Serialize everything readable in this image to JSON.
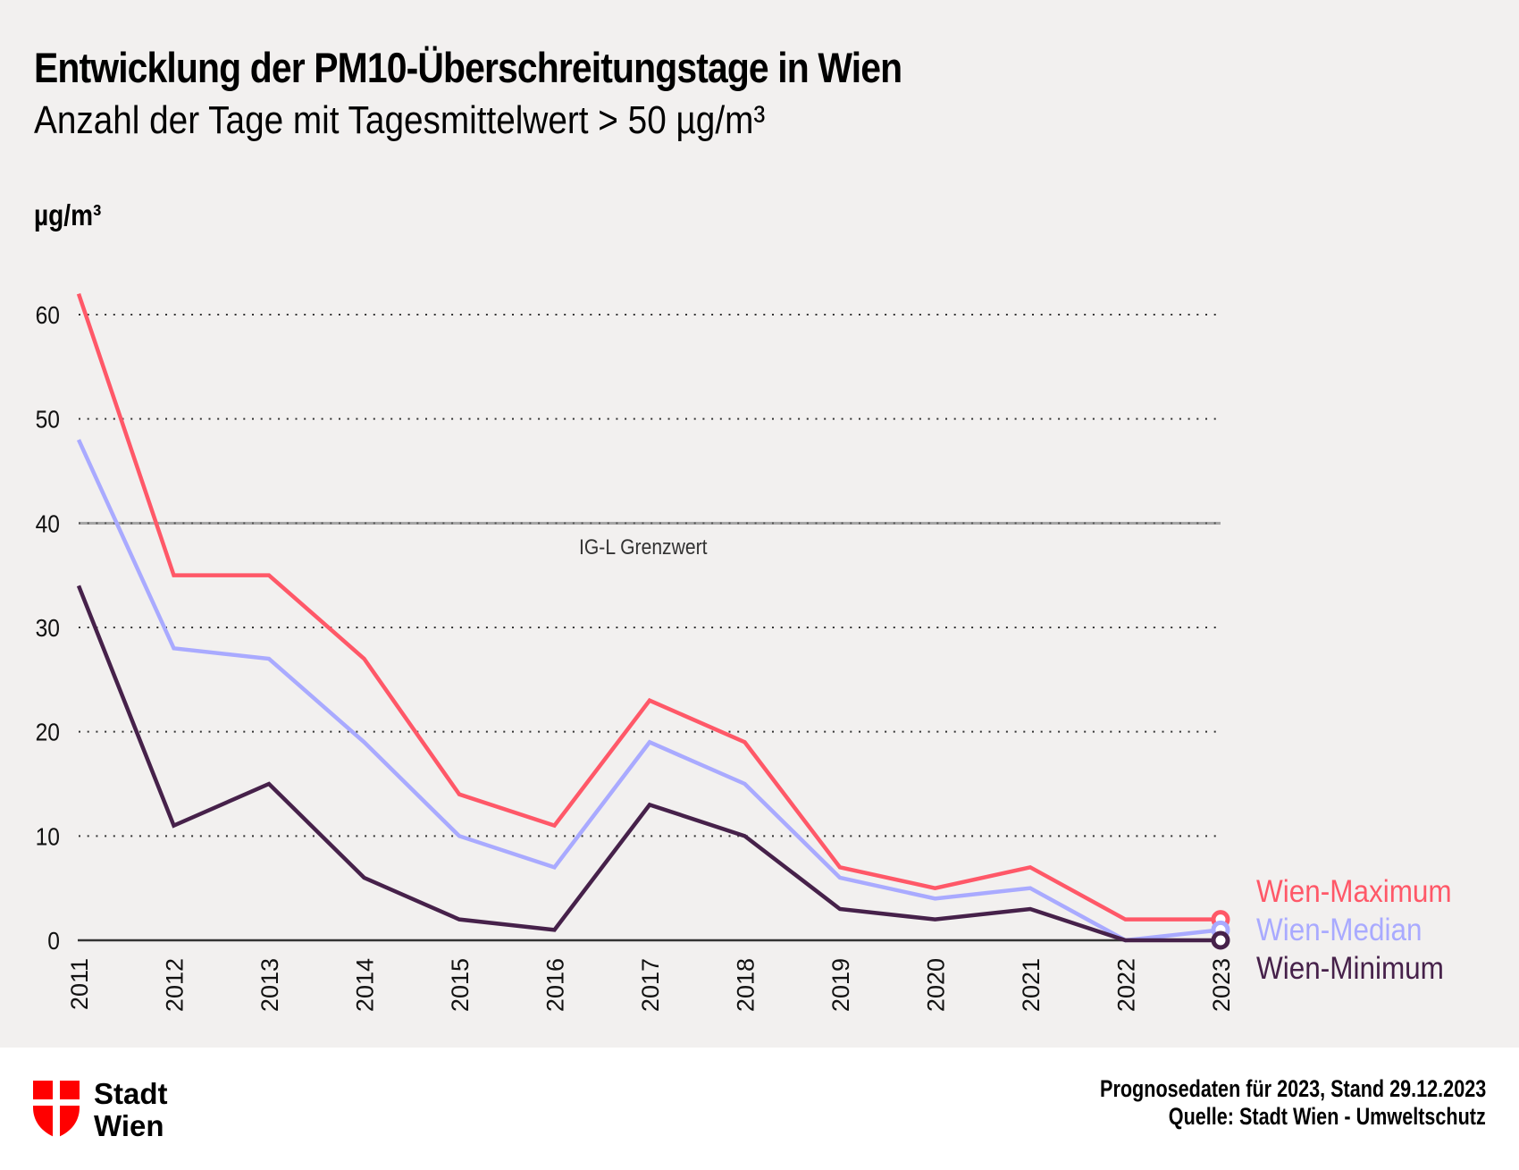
{
  "header": {
    "title": "Entwicklung der PM10-Überschreitungstage in Wien",
    "subtitle": "Anzahl der Tage mit Tagesmittelwert > 50 µg/m³"
  },
  "chart_data": {
    "type": "line",
    "title": "Entwicklung der PM10-Überschreitungstage in Wien",
    "subtitle": "Anzahl der Tage mit Tagesmittelwert > 50 µg/m³",
    "xlabel": "",
    "ylabel": "µg/m³",
    "x": [
      "2011",
      "2012",
      "2013",
      "2014",
      "2015",
      "2016",
      "2017",
      "2018",
      "2019",
      "2020",
      "2021",
      "2022",
      "2023"
    ],
    "ylim": [
      0,
      60
    ],
    "yticks": [
      0,
      10,
      20,
      30,
      40,
      50,
      60
    ],
    "grid": true,
    "series": [
      {
        "name": "Wien-Maximum",
        "color": "#ff5868",
        "values": [
          62,
          35,
          35,
          27,
          14,
          11,
          23,
          19,
          7,
          5,
          7,
          2,
          2
        ]
      },
      {
        "name": "Wien-Median",
        "color": "#a9aaff",
        "values": [
          48,
          28,
          27,
          19,
          10,
          7,
          19,
          15,
          6,
          4,
          5,
          0,
          1
        ]
      },
      {
        "name": "Wien-Minimum",
        "color": "#46214a",
        "values": [
          34,
          11,
          15,
          6,
          2,
          1,
          13,
          10,
          3,
          2,
          3,
          0,
          0
        ]
      }
    ],
    "reference_line": {
      "label": "IG-L Grenzwert",
      "value": 40
    },
    "legend_position": "right",
    "annotation": "Prognosedaten für 2023"
  },
  "footer": {
    "logo_line1": "Stadt",
    "logo_line2": "Wien",
    "note": "Prognosedaten für 2023, Stand 29.12.2023",
    "source": "Quelle: Stadt Wien - Umweltschutz"
  },
  "colors": {
    "background": "#f2f0ef",
    "footer_background": "#ffffff",
    "logo_red": "#ff0000"
  }
}
